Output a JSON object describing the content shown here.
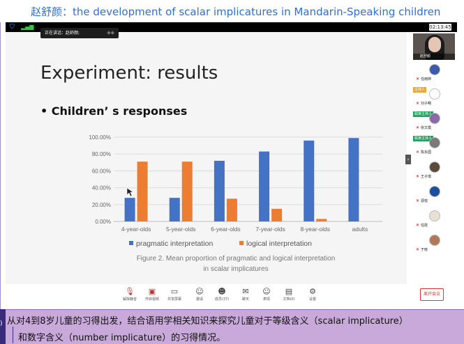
{
  "caption": {
    "title": "赵舒颜：the development of scalar implicatures in Mandarin-Speaking children"
  },
  "status_bar": {
    "clock": "02:13:45"
  },
  "speaking_indicator": {
    "text": "正在讲话：赵舒颜;"
  },
  "slide": {
    "title": "Experiment: results",
    "bullet": "• Children’ s responses"
  },
  "chart_data": {
    "type": "bar",
    "categories": [
      "4-year-olds",
      "5-year-olds",
      "6-year-olds",
      "7-year-olds",
      "8-year-olds",
      "adults"
    ],
    "series": [
      {
        "name": "pragmatic interpretation",
        "color": "#4472c4",
        "values": [
          28,
          28,
          72,
          83,
          96,
          99
        ]
      },
      {
        "name": "logical interpretation",
        "color": "#ed7d31",
        "values": [
          71,
          71,
          27,
          15,
          3,
          0
        ]
      }
    ],
    "yticks": [
      "0.00%",
      "20.00%",
      "40.00%",
      "60.00%",
      "80.00%",
      "100.00%"
    ],
    "ylim": [
      0,
      100
    ],
    "grid": true,
    "legend_placement": "bottom",
    "caption_line1": "Figure 2. Mean proportion of pragmatic and logical interpretation",
    "caption_line2": "in scalar implicatures"
  },
  "toolbar": {
    "buttons": [
      {
        "label": "解除静音",
        "icon": "mic-muted-icon",
        "glyph": "🎙"
      },
      {
        "label": "开启视频",
        "icon": "video-off-icon",
        "glyph": "▣"
      },
      {
        "label": "共享屏幕",
        "icon": "share-screen-icon",
        "glyph": "▭"
      },
      {
        "label": "邀请",
        "icon": "invite-icon",
        "glyph": "☺"
      },
      {
        "label": "成员(37)",
        "icon": "members-icon",
        "glyph": "☻"
      },
      {
        "label": "聊天",
        "icon": "chat-icon",
        "glyph": "✉"
      },
      {
        "label": "表情",
        "icon": "emoji-icon",
        "glyph": "☺"
      },
      {
        "label": "文档(0)",
        "icon": "document-icon",
        "glyph": "▤"
      },
      {
        "label": "设置",
        "icon": "settings-icon",
        "glyph": "⚙"
      }
    ],
    "leave_label": "离开会议"
  },
  "participants": {
    "camera_name": "赵舒颜",
    "list": [
      {
        "name": "任雨婷",
        "tag": "",
        "avatar_color": "#3b5aa8"
      },
      {
        "name": "刘子畅",
        "tag": "主持人",
        "avatar_color": "#ffffff"
      },
      {
        "name": "张文霞",
        "tag": "联席主持人",
        "avatar_color": "#8a6aa8"
      },
      {
        "name": "陈永国",
        "tag": "联席主持人",
        "avatar_color": "#7a7a7a"
      },
      {
        "name": "王子琪",
        "tag": "",
        "avatar_color": "#5a4a3a"
      },
      {
        "name": "源悦",
        "tag": "",
        "avatar_color": "#1d4f9a"
      },
      {
        "name": "任政",
        "tag": "",
        "avatar_color": "#e8e0d0"
      },
      {
        "name": "于晓",
        "tag": "",
        "avatar_color": "#b07a5a"
      }
    ]
  },
  "subtitles": {
    "line1": "从对4到8岁儿童的习得出发，结合语用学相关知识来探究儿童对于等级含义（scalar implicature）",
    "line2": "和数字含义（number implicature）的习得情况。"
  }
}
